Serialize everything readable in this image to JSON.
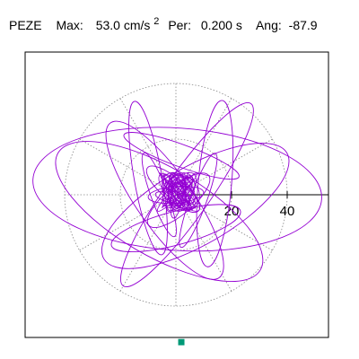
{
  "header": {
    "station": "PEZE",
    "max_label": "Max:",
    "max_value": "53.0 cm/s",
    "max_exp": "2",
    "per_label": "Per:",
    "per_value": "0.200 s",
    "ang_label": "Ang:",
    "ang_value": "-87.9"
  },
  "chart_data": {
    "type": "polar-orbit",
    "title": "PEZE  Max: 53.0 cm/s2  Per: 0.200 s  Ang: -87.9",
    "units": "cm/s^2",
    "max": 53.0,
    "angle_deg": -87.9,
    "period_s": 0.2,
    "rings": [
      20,
      40
    ],
    "ring_labels": [
      "20",
      "40"
    ],
    "spokes_deg": 30,
    "grid": true,
    "trace_color": "#9400d3",
    "max_marker_color": "#009977",
    "orbit_loops": [
      {
        "a": 22,
        "b": 52,
        "rot": 94,
        "cx": 0.5,
        "cy": -2
      },
      {
        "a": 16,
        "b": 42,
        "rot": 120,
        "cx": -6,
        "cy": 6
      },
      {
        "a": 14,
        "b": 38,
        "rot": 60,
        "cx": 7,
        "cy": 4
      },
      {
        "a": 8,
        "b": 40,
        "rot": 35,
        "cx": 4,
        "cy": 0
      },
      {
        "a": 10,
        "b": 34,
        "rot": 145,
        "cx": -4,
        "cy": 2
      },
      {
        "a": 6,
        "b": 30,
        "rot": 5,
        "cx": 14,
        "cy": -4
      },
      {
        "a": 5,
        "b": 28,
        "rot": 170,
        "cx": -10,
        "cy": -6
      },
      {
        "a": 6,
        "b": 24,
        "rot": 75,
        "cx": 0,
        "cy": 12
      },
      {
        "a": 4,
        "b": 22,
        "rot": 110,
        "cx": 2,
        "cy": -14
      },
      {
        "a": 3,
        "b": 18,
        "rot": 20,
        "cx": 8,
        "cy": 2
      },
      {
        "a": 3,
        "b": 16,
        "rot": 160,
        "cx": -6,
        "cy": 0
      },
      {
        "a": 5,
        "b": 14,
        "rot": 50,
        "cx": 1,
        "cy": 2
      },
      {
        "a": 4,
        "b": 12,
        "rot": 130,
        "cx": -1,
        "cy": -2
      },
      {
        "a": 3,
        "b": 10,
        "rot": 85,
        "cx": 0,
        "cy": 0
      },
      {
        "a": 2,
        "b": 8,
        "rot": 10,
        "cx": 0.5,
        "cy": 0.5
      },
      {
        "a": 2,
        "b": 7,
        "rot": 100,
        "cx": -0.5,
        "cy": 1
      }
    ]
  }
}
